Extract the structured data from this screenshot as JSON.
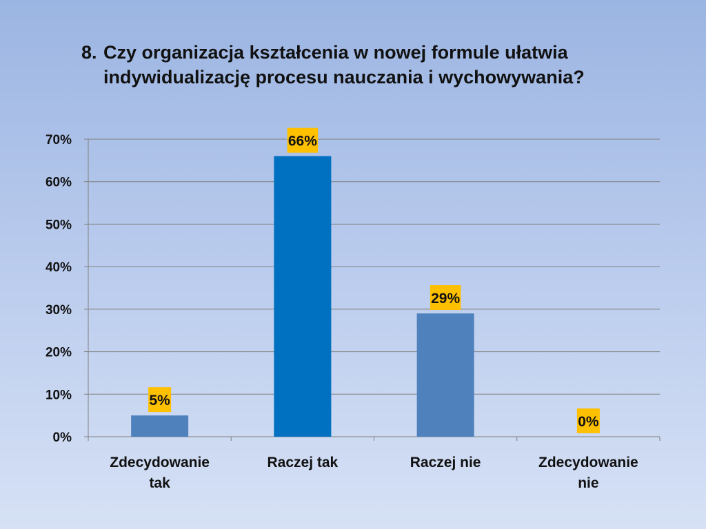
{
  "slide": {
    "title_number": "8.",
    "title_text": "Czy organizacja kształcenia  w nowej formule ułatwia indywidualizację procesu nauczania i wychowywania?"
  },
  "chart_data": {
    "type": "bar",
    "categories": [
      [
        "Zdecydowanie",
        "tak"
      ],
      [
        "Raczej tak"
      ],
      [
        "Raczej nie"
      ],
      [
        "Zdecydowanie",
        "nie"
      ]
    ],
    "values": [
      5,
      66,
      29,
      0
    ],
    "value_labels": [
      "5%",
      "66%",
      "29%",
      "0%"
    ],
    "ylim": [
      0,
      70
    ],
    "yticks": [
      0,
      10,
      20,
      30,
      40,
      50,
      60,
      70
    ],
    "ytick_labels": [
      "0%",
      "10%",
      "20%",
      "30%",
      "40%",
      "50%",
      "60%",
      "70%"
    ],
    "grid": true,
    "legend": "none",
    "bar_colors": [
      "#4f81bd",
      "#0070c0",
      "#4f81bd",
      "#4f81bd"
    ],
    "label_background": "#ffc000",
    "gridline_color": "#808080"
  }
}
